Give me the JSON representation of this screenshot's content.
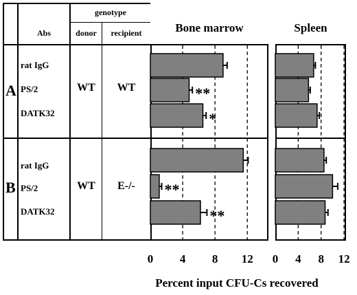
{
  "table": {
    "header_genotype": "genotype",
    "header_abs": "Abs",
    "header_donor": "donor",
    "header_recipient": "recipient"
  },
  "groups": [
    {
      "label": "A",
      "antibodies": [
        "rat IgG",
        "PS/2",
        "DATK32"
      ],
      "donor": "WT",
      "recipient": "WT"
    },
    {
      "label": "B",
      "antibodies": [
        "rat IgG",
        "PS/2",
        "DATK32"
      ],
      "donor": "WT",
      "recipient": "E-/-"
    }
  ],
  "x_axis_label": "Percent input CFU-Cs recovered",
  "colors": {
    "bar_fill": "#808080",
    "bar_stroke": "#000000"
  },
  "chart_data": [
    {
      "type": "bar",
      "orientation": "horizontal",
      "title": "Bone marrow",
      "xlim": [
        0,
        15
      ],
      "xticks": [
        "0",
        "4",
        "8",
        "12"
      ],
      "grid": "dashed vertical lines at 4, 8, 12",
      "series": [
        {
          "group": "A",
          "categories": [
            "rat IgG",
            "PS/2",
            "DATK32"
          ],
          "values": [
            9.0,
            4.8,
            6.5
          ],
          "errors": [
            0.5,
            0.4,
            0.4
          ],
          "annotations": [
            "",
            "**",
            "*"
          ]
        },
        {
          "group": "B",
          "categories": [
            "rat IgG",
            "PS/2",
            "DATK32"
          ],
          "values": [
            11.5,
            1.1,
            6.2
          ],
          "errors": [
            0.6,
            0.3,
            0.8
          ],
          "annotations": [
            "",
            "**",
            "**"
          ]
        }
      ]
    },
    {
      "type": "bar",
      "orientation": "horizontal",
      "title": "Spleen",
      "xlim": [
        0,
        12
      ],
      "xticks": [
        "0",
        "4",
        "8",
        "12"
      ],
      "grid": "dashed vertical lines at 4, 8, 12",
      "series": [
        {
          "group": "A",
          "categories": [
            "rat IgG",
            "PS/2",
            "DATK32"
          ],
          "values": [
            6.7,
            5.8,
            7.3
          ],
          "errors": [
            0.3,
            0.3,
            0.4
          ],
          "annotations": [
            "",
            "",
            ""
          ]
        },
        {
          "group": "B",
          "categories": [
            "rat IgG",
            "PS/2",
            "DATK32"
          ],
          "values": [
            8.5,
            10.0,
            8.7
          ],
          "errors": [
            0.4,
            0.9,
            0.5
          ],
          "annotations": [
            "",
            "",
            ""
          ]
        }
      ]
    }
  ]
}
